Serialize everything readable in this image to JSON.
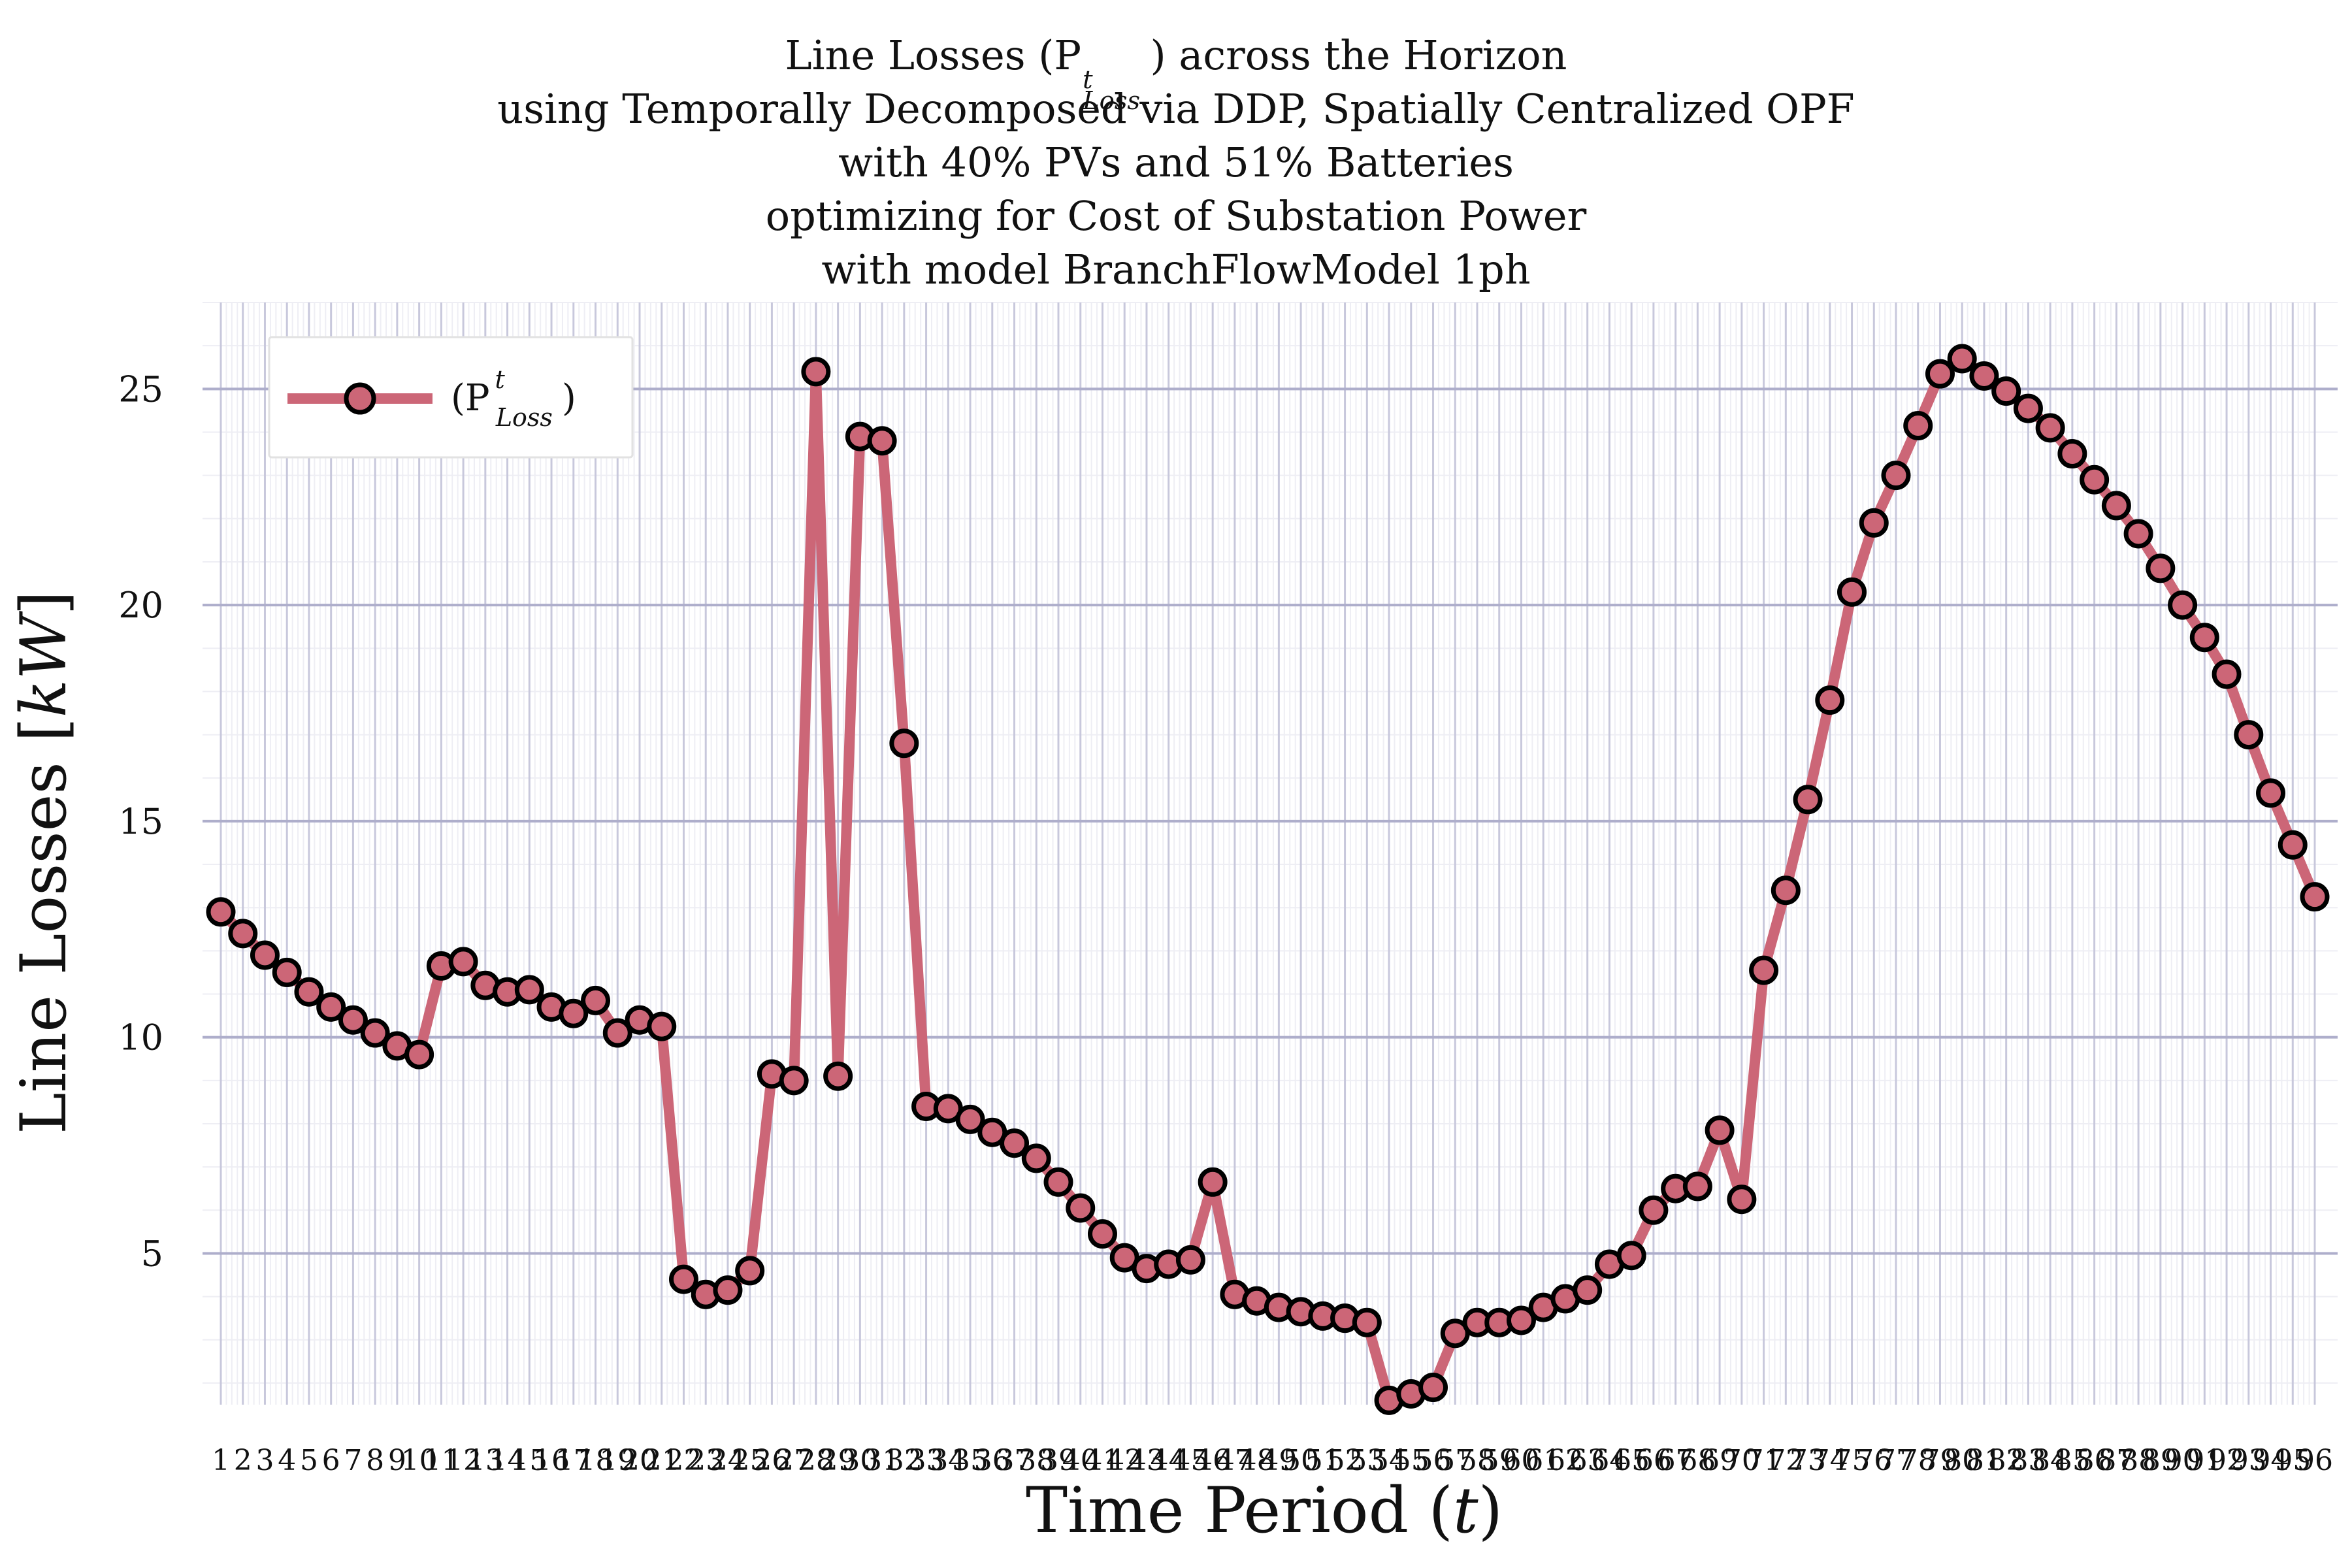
{
  "title_lines": [
    "Line Losses (P",
    "using Temporally Decomposed via DDP, Spatially Centralized OPF",
    "with 40% PVs and 51% Batteries",
    "optimizing for Cost of Substation Power",
    "with model BranchFlowModel 1ph"
  ],
  "title_line1_sup": "t",
  "title_line1_sub": "Loss",
  "title_line1_tail": ") across the Horizon",
  "chart_data": {
    "type": "line",
    "xlabel": "Time Period (t)",
    "ylabel": "Line Losses [kW]",
    "ylim": [
      1.5,
      27.0
    ],
    "yticks": [
      5,
      10,
      15,
      20,
      25
    ],
    "grid": true,
    "legend_position": "top-left",
    "x": [
      1,
      2,
      3,
      4,
      5,
      6,
      7,
      8,
      9,
      10,
      11,
      12,
      13,
      14,
      15,
      16,
      17,
      18,
      19,
      20,
      21,
      22,
      23,
      24,
      25,
      26,
      27,
      28,
      29,
      30,
      31,
      32,
      33,
      34,
      35,
      36,
      37,
      38,
      39,
      40,
      41,
      42,
      43,
      44,
      45,
      46,
      47,
      48,
      49,
      50,
      51,
      52,
      53,
      54,
      55,
      56,
      57,
      58,
      59,
      60,
      61,
      62,
      63,
      64,
      65,
      66,
      67,
      68,
      69,
      70,
      71,
      72,
      73,
      74,
      75,
      76,
      77,
      78,
      79,
      80,
      81,
      82,
      83,
      84,
      85,
      86,
      87,
      88,
      89,
      90,
      91,
      92,
      93,
      94,
      95,
      96
    ],
    "series": [
      {
        "name": "(P^t_Loss)",
        "color": "#cc6677",
        "values": [
          12.9,
          12.4,
          11.9,
          11.5,
          11.05,
          10.7,
          10.4,
          10.1,
          9.8,
          9.6,
          11.65,
          11.75,
          11.2,
          11.05,
          11.1,
          10.7,
          10.55,
          10.85,
          10.1,
          10.4,
          10.25,
          4.4,
          4.05,
          4.15,
          4.6,
          9.15,
          9.0,
          25.4,
          9.1,
          23.9,
          23.8,
          16.8,
          8.4,
          8.35,
          8.1,
          7.8,
          7.55,
          7.2,
          6.65,
          6.05,
          5.45,
          4.9,
          4.65,
          4.75,
          4.85,
          6.65,
          4.05,
          3.9,
          3.75,
          3.65,
          3.55,
          3.5,
          3.4,
          1.6,
          1.75,
          1.9,
          3.15,
          3.4,
          3.4,
          3.45,
          3.75,
          3.95,
          4.15,
          4.75,
          4.95,
          6.0,
          6.5,
          6.55,
          7.85,
          6.25,
          11.55,
          13.4,
          15.5,
          17.8,
          20.3,
          21.9,
          23.0,
          24.15,
          25.35,
          25.7,
          25.3,
          24.95,
          24.55,
          24.1,
          23.5,
          22.9,
          22.3,
          21.65,
          20.85,
          20.0,
          19.25,
          18.4,
          17.0,
          15.65,
          14.45,
          13.25
        ]
      }
    ],
    "legend": {
      "label_prefix": "(P",
      "label_sup": "t",
      "label_sub": "Loss",
      "label_suffix": ")"
    },
    "xlabel_parts": [
      "Time Period (",
      "t",
      ")"
    ],
    "ylabel_parts": [
      "Line Losses [",
      "kW",
      "]"
    ]
  }
}
